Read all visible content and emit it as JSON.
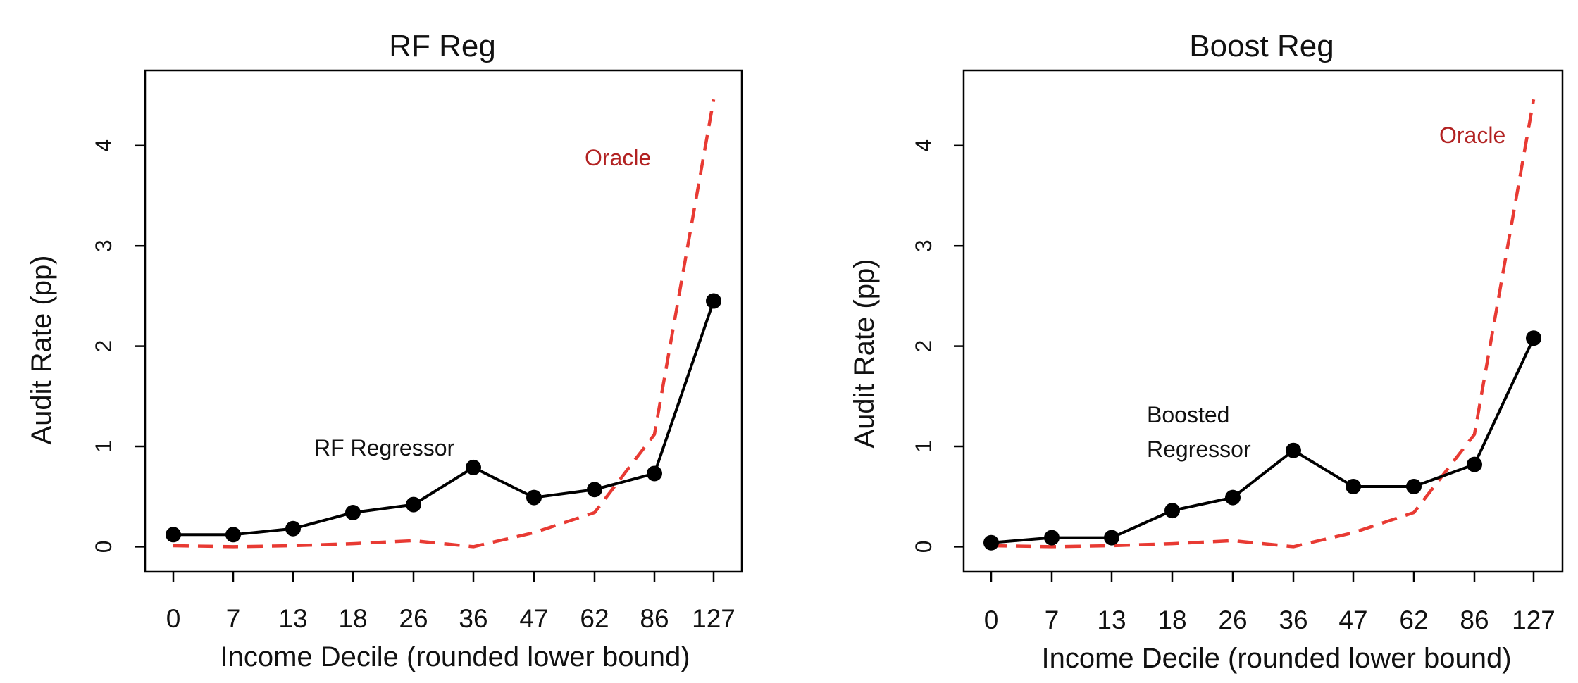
{
  "chart_data": [
    {
      "type": "line",
      "title": "RF Reg",
      "xlabel": "Income Decile (rounded lower bound)",
      "ylabel": "Audit Rate (pp)",
      "categories": [
        "0",
        "7",
        "13",
        "18",
        "26",
        "36",
        "47",
        "62",
        "86",
        "127"
      ],
      "yticks": [
        0,
        1,
        2,
        3,
        4
      ],
      "ylim": [
        -0.25,
        4.75
      ],
      "grid": false,
      "series": [
        {
          "name": "RF Regressor",
          "style": "solid-markers",
          "color": "#000000",
          "values": [
            0.12,
            0.12,
            0.18,
            0.34,
            0.42,
            0.79,
            0.49,
            0.57,
            0.73,
            2.45
          ]
        },
        {
          "name": "Oracle",
          "style": "dashed",
          "color": "#e83a33",
          "values": [
            0.01,
            0.0,
            0.01,
            0.03,
            0.06,
            0.0,
            0.14,
            0.34,
            1.12,
            4.46
          ]
        }
      ],
      "annotations": [
        {
          "text": "Oracle",
          "color": "#b22222",
          "series": "Oracle"
        },
        {
          "text": "RF Regressor",
          "color": "#111111",
          "series": "RF Regressor"
        }
      ]
    },
    {
      "type": "line",
      "title": "Boost Reg",
      "xlabel": "Income Decile (rounded lower bound)",
      "ylabel": "Audit Rate (pp)",
      "categories": [
        "0",
        "7",
        "13",
        "18",
        "26",
        "36",
        "47",
        "62",
        "86",
        "127"
      ],
      "yticks": [
        0,
        1,
        2,
        3,
        4
      ],
      "ylim": [
        -0.25,
        4.75
      ],
      "grid": false,
      "series": [
        {
          "name": "Boosted Regressor",
          "style": "solid-markers",
          "color": "#000000",
          "values": [
            0.04,
            0.09,
            0.09,
            0.36,
            0.49,
            0.96,
            0.6,
            0.6,
            0.82,
            2.08
          ]
        },
        {
          "name": "Oracle",
          "style": "dashed",
          "color": "#e83a33",
          "values": [
            0.01,
            0.0,
            0.01,
            0.03,
            0.06,
            0.0,
            0.14,
            0.34,
            1.12,
            4.46
          ]
        }
      ],
      "annotations": [
        {
          "text": "Oracle",
          "color": "#b22222",
          "series": "Oracle"
        },
        {
          "text": "Boosted",
          "color": "#111111",
          "series": "Boosted Regressor"
        },
        {
          "text": "Regressor",
          "color": "#111111",
          "series": "Boosted Regressor"
        }
      ]
    }
  ]
}
